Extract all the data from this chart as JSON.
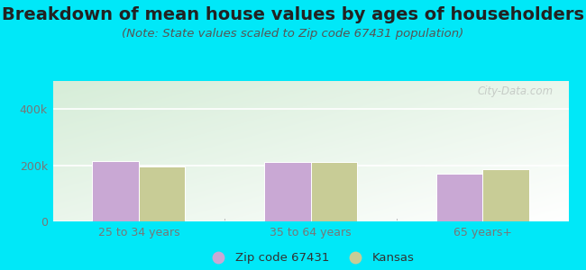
{
  "title": "Breakdown of mean house values by ages of householders",
  "subtitle": "(Note: State values scaled to Zip code 67431 population)",
  "categories": [
    "25 to 34 years",
    "35 to 64 years",
    "65 years+"
  ],
  "zip_values": [
    215000,
    210000,
    170000
  ],
  "kansas_values": [
    197000,
    210000,
    187000
  ],
  "ylim": [
    0,
    500000
  ],
  "ytick_labels": [
    "0",
    "200k",
    "400k"
  ],
  "ytick_vals": [
    0,
    200000,
    400000
  ],
  "zip_color": "#c9a8d4",
  "kansas_color": "#c8cc96",
  "background_outer": "#00e8f8",
  "grad_color_top_left": "#d6edd8",
  "grad_color_bottom_right": "#f8fdf5",
  "bar_edge_color": "#ffffff",
  "legend_zip_label": "Zip code 67431",
  "legend_kansas_label": "Kansas",
  "title_fontsize": 14,
  "subtitle_fontsize": 9.5,
  "watermark": "City-Data.com",
  "tick_color": "#777777",
  "title_color": "#222222",
  "subtitle_color": "#555555"
}
